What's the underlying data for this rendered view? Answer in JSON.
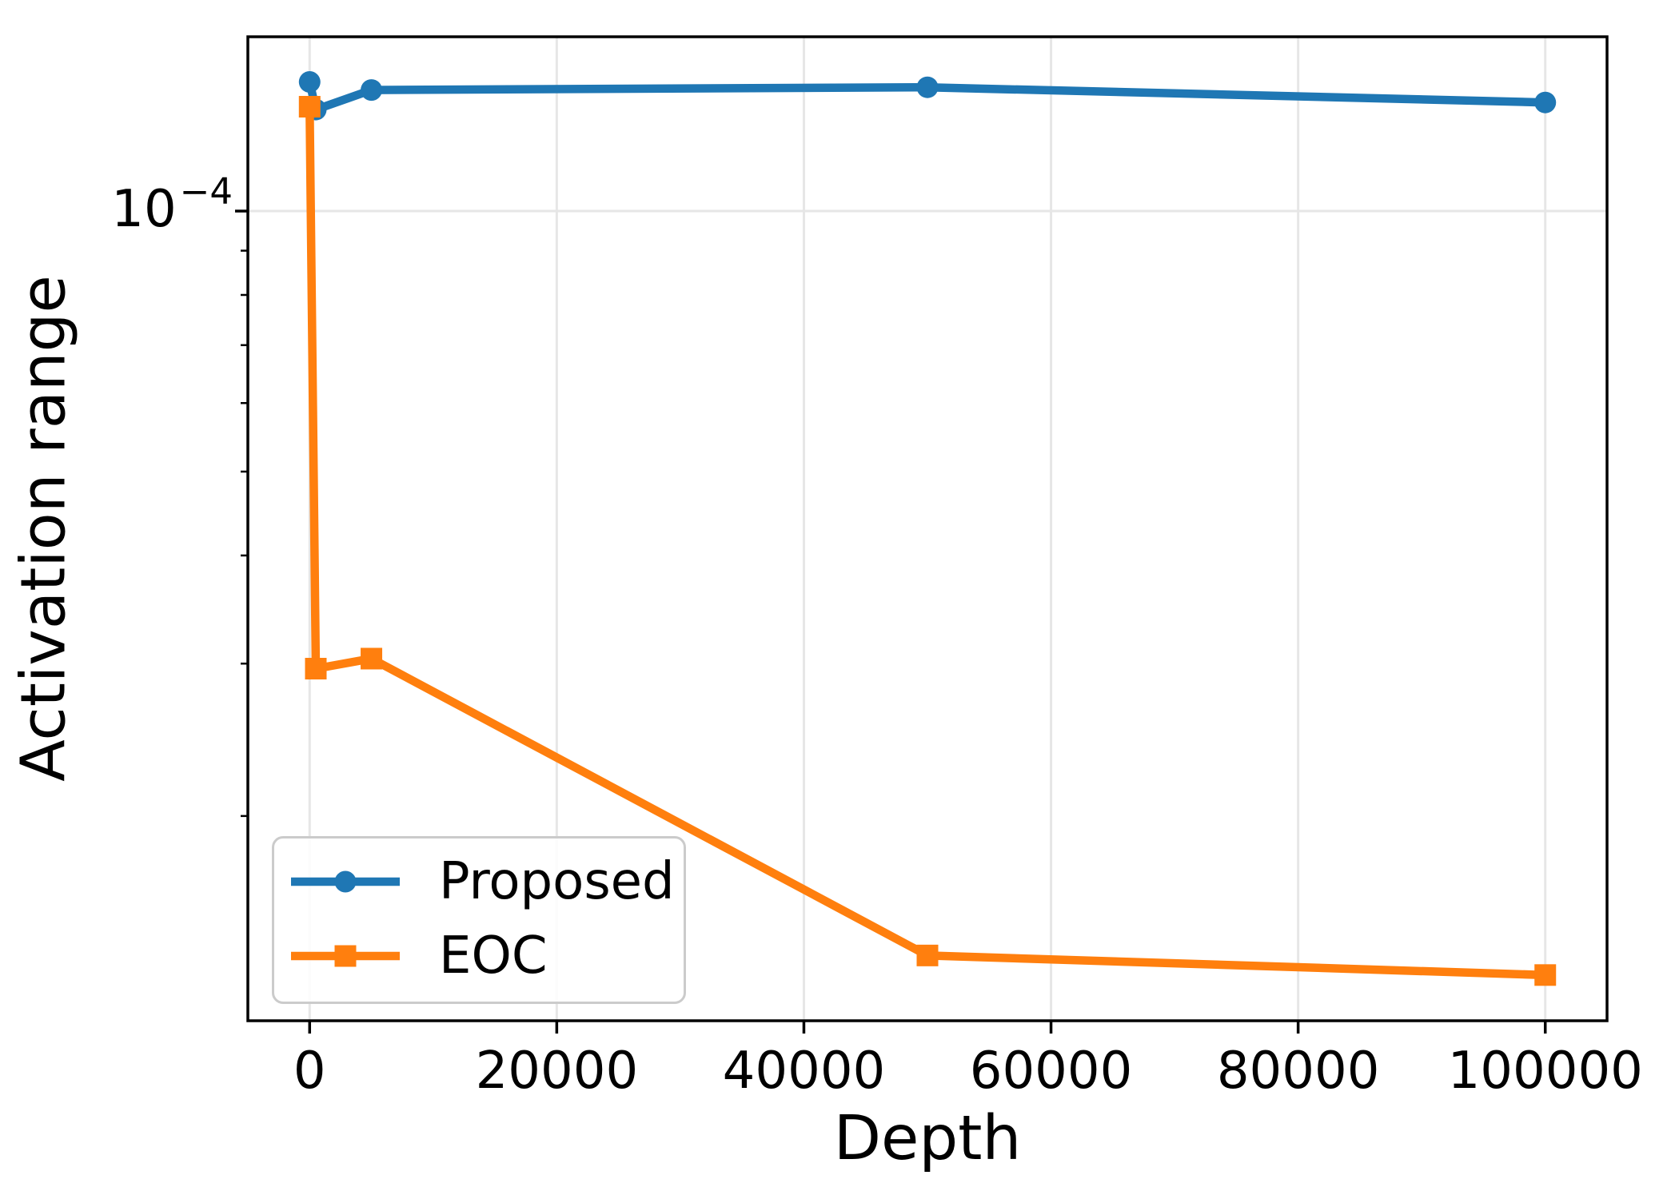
{
  "figure": {
    "background": "#ffffff",
    "text_color": "#000000",
    "grid_color": "#e6e6e6",
    "spine_color": "#000000",
    "tick_color": "#000000"
  },
  "chart_data": {
    "type": "line",
    "title": "",
    "xlabel": "Depth",
    "ylabel": "Activation range",
    "xlim": [
      -5000,
      105000
    ],
    "x_ticks": [
      0,
      20000,
      40000,
      60000,
      80000,
      100000
    ],
    "x_tick_labels": [
      "0",
      "20000",
      "40000",
      "60000",
      "80000",
      "100000"
    ],
    "yscale": "log",
    "ylim": [
      1.16e-05,
      0.000159
    ],
    "y_major_ticks": [
      0.0001
    ],
    "y_tick_label": {
      "base": "10",
      "exponent": "−4"
    },
    "y_minor_ticks": [
      2e-05,
      3e-05,
      4e-05,
      5e-05,
      6e-05,
      7e-05,
      8e-05,
      9e-05
    ],
    "grid": {
      "x_major": true,
      "y_major": true,
      "minor": false
    },
    "legend": {
      "position": "lower left",
      "entries": [
        "Proposed",
        "EOC"
      ]
    },
    "series": [
      {
        "name": "Proposed",
        "color": "#1f77b4",
        "marker": "circle",
        "x": [
          1,
          500,
          5000,
          50000,
          100000
        ],
        "y": [
          0.000141,
          0.000131,
          0.000138,
          0.000139,
          0.0001335
        ]
      },
      {
        "name": "EOC",
        "color": "#ff7f0e",
        "marker": "square",
        "x": [
          1,
          500,
          5000,
          50000,
          100000
        ],
        "y": [
          0.000132,
          2.96e-05,
          3.04e-05,
          1.38e-05,
          1.31e-05
        ]
      }
    ]
  }
}
